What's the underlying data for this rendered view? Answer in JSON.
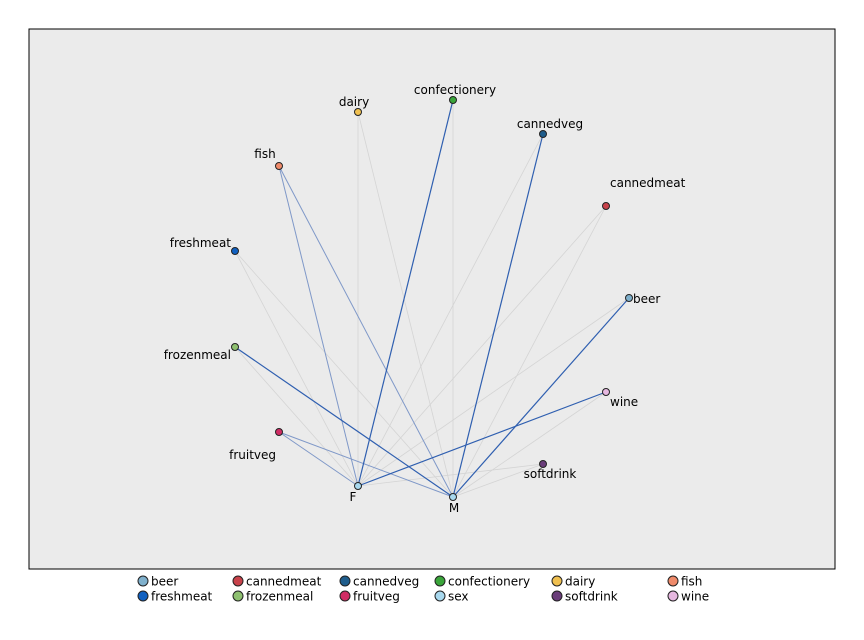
{
  "chart_data": {
    "type": "web",
    "legend_position": "bottom",
    "nodes": [
      {
        "name": "dairy",
        "group": "dairy",
        "color": "#f0c050"
      },
      {
        "name": "confectionery",
        "group": "confectionery",
        "color": "#3aa53a"
      },
      {
        "name": "cannedveg",
        "group": "cannedveg",
        "color": "#1f5d8c"
      },
      {
        "name": "fish",
        "group": "fish",
        "color": "#ef8a6a"
      },
      {
        "name": "cannedmeat",
        "group": "cannedmeat",
        "color": "#c8424a"
      },
      {
        "name": "freshmeat",
        "group": "freshmeat",
        "color": "#1060c0"
      },
      {
        "name": "beer",
        "group": "beer",
        "color": "#7fb0cc"
      },
      {
        "name": "frozenmeal",
        "group": "frozenmeal",
        "color": "#8ec070"
      },
      {
        "name": "wine",
        "group": "wine",
        "color": "#e6b8e0"
      },
      {
        "name": "fruitveg",
        "group": "fruitveg",
        "color": "#d02c64"
      },
      {
        "name": "softdrink",
        "group": "softdrink",
        "color": "#6a3d7a"
      },
      {
        "name": "F",
        "group": "sex",
        "color": "#a8d8ee"
      },
      {
        "name": "M",
        "group": "sex",
        "color": "#a8d8ee"
      }
    ],
    "links": [
      {
        "source": "F",
        "target": "confectionery",
        "strength": "strong"
      },
      {
        "source": "M",
        "target": "cannedveg",
        "strength": "strong"
      },
      {
        "source": "M",
        "target": "beer",
        "strength": "strong"
      },
      {
        "source": "M",
        "target": "frozenmeal",
        "strength": "strong"
      },
      {
        "source": "F",
        "target": "wine",
        "strength": "strong"
      },
      {
        "source": "F",
        "target": "fish",
        "strength": "medium"
      },
      {
        "source": "M",
        "target": "fish",
        "strength": "medium"
      },
      {
        "source": "F",
        "target": "fruitveg",
        "strength": "medium"
      },
      {
        "source": "M",
        "target": "fruitveg",
        "strength": "medium"
      },
      {
        "source": "F",
        "target": "dairy",
        "strength": "weak"
      },
      {
        "source": "M",
        "target": "dairy",
        "strength": "weak"
      },
      {
        "source": "M",
        "target": "confectionery",
        "strength": "weak"
      },
      {
        "source": "F",
        "target": "cannedveg",
        "strength": "weak"
      },
      {
        "source": "F",
        "target": "cannedmeat",
        "strength": "weak"
      },
      {
        "source": "M",
        "target": "cannedmeat",
        "strength": "weak"
      },
      {
        "source": "F",
        "target": "freshmeat",
        "strength": "weak"
      },
      {
        "source": "M",
        "target": "freshmeat",
        "strength": "weak"
      },
      {
        "source": "F",
        "target": "beer",
        "strength": "weak"
      },
      {
        "source": "F",
        "target": "frozenmeal",
        "strength": "weak"
      },
      {
        "source": "M",
        "target": "wine",
        "strength": "weak"
      },
      {
        "source": "F",
        "target": "softdrink",
        "strength": "weak"
      },
      {
        "source": "M",
        "target": "softdrink",
        "strength": "weak"
      }
    ],
    "legend": [
      {
        "label": "beer",
        "color": "#7fb0cc"
      },
      {
        "label": "cannedmeat",
        "color": "#c8424a"
      },
      {
        "label": "cannedveg",
        "color": "#1f5d8c"
      },
      {
        "label": "confectionery",
        "color": "#3aa53a"
      },
      {
        "label": "dairy",
        "color": "#f0c050"
      },
      {
        "label": "fish",
        "color": "#ef8a6a"
      },
      {
        "label": "freshmeat",
        "color": "#1060c0"
      },
      {
        "label": "frozenmeal",
        "color": "#8ec070"
      },
      {
        "label": "fruitveg",
        "color": "#d02c64"
      },
      {
        "label": "sex",
        "color": "#a8d8ee"
      },
      {
        "label": "softdrink",
        "color": "#6a3d7a"
      },
      {
        "label": "wine",
        "color": "#e6b8e0"
      }
    ],
    "colors": {
      "plot_background": "#ebebeb",
      "link_strong": "#2f5fb0",
      "link_medium": "#7f98c8",
      "link_weak": "#d4d4d4"
    }
  }
}
